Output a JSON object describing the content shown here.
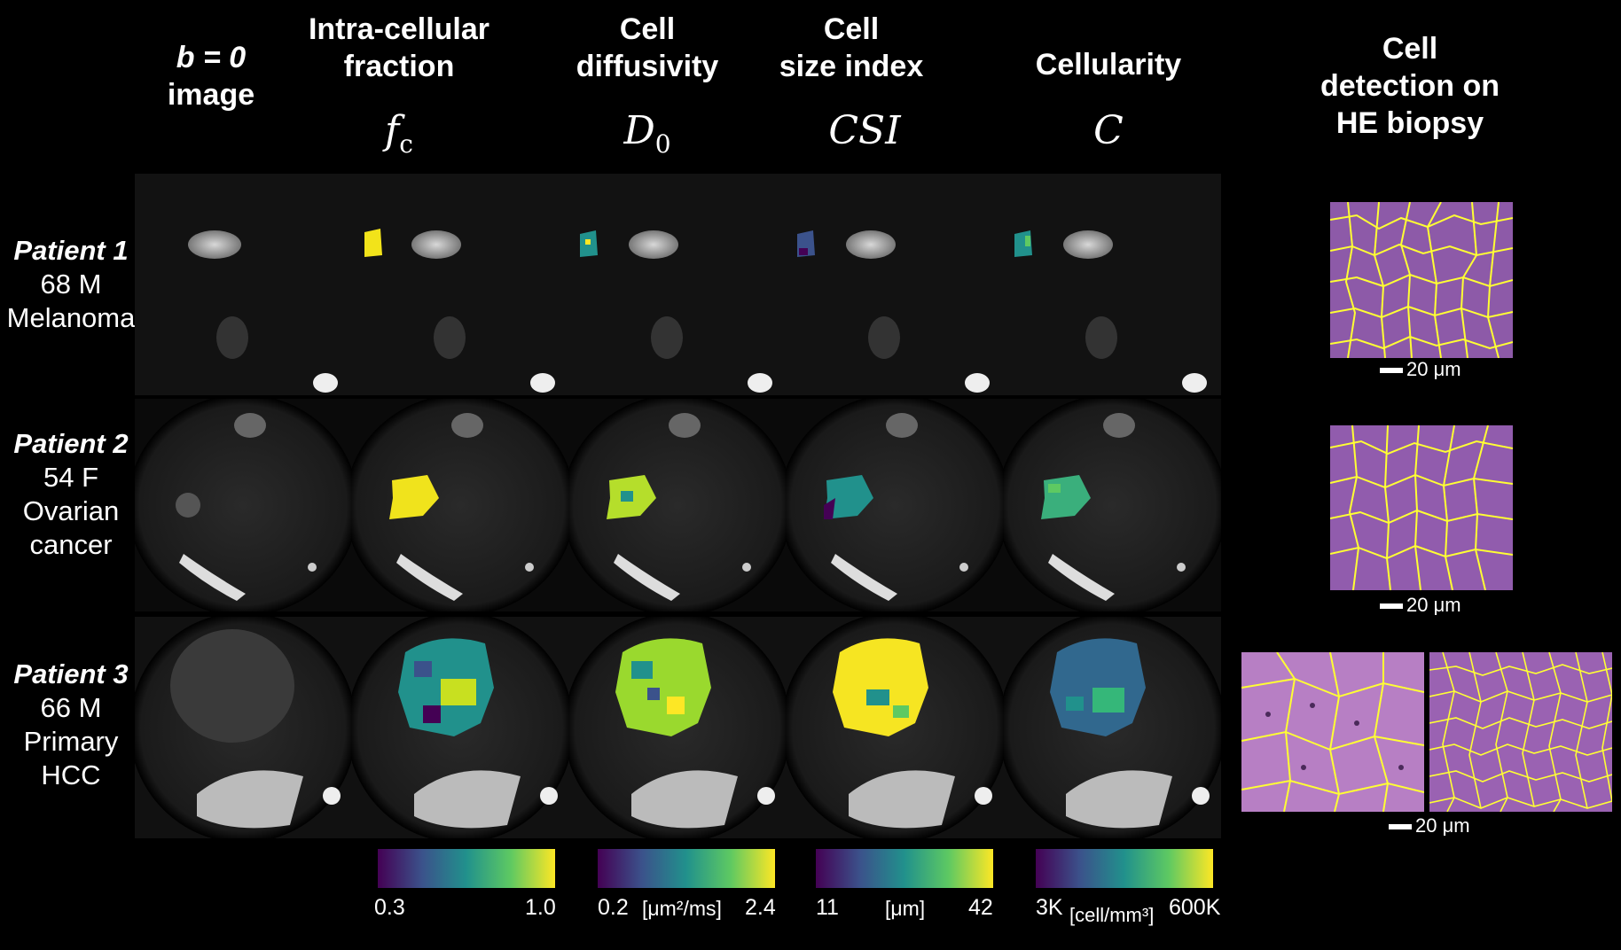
{
  "columns": {
    "b0": {
      "line1": "b = 0",
      "line2": "image"
    },
    "fc": {
      "line1": "Intra-cellular",
      "line2": "fraction",
      "symbol": "f",
      "sub": "c"
    },
    "d0": {
      "line1": "Cell",
      "line2": "diffusivity",
      "symbol": "D",
      "sub": "0"
    },
    "csi": {
      "line1": "Cell",
      "line2": "size index",
      "symbol": "CSI"
    },
    "cell": {
      "line1": "Cellularity",
      "symbol": "C"
    },
    "he": {
      "line1": "Cell",
      "line2": "detection on",
      "line3": "HE biopsy"
    }
  },
  "patients": [
    {
      "name": "Patient 1",
      "line1": "68 M",
      "line2": "Melanoma"
    },
    {
      "name": "Patient 2",
      "line1": "54 F",
      "line2": "Ovarian",
      "line3": "cancer"
    },
    {
      "name": "Patient 3",
      "line1": "66 M",
      "line2": "Primary",
      "line3": "HCC"
    }
  ],
  "colorbars": {
    "fc": {
      "min": "0.3",
      "max": "1.0",
      "unit": ""
    },
    "d0": {
      "min": "0.2",
      "max": "2.4",
      "unit": "[μm²/ms]"
    },
    "csi": {
      "min": "11",
      "max": "42",
      "unit": "[μm]"
    },
    "cell": {
      "min": "3K",
      "max": "600K",
      "unit": "[cell/mm³]"
    }
  },
  "scale_label": "20 μm",
  "colors": {
    "viridis_low": "#440154",
    "viridis_mid": "#21918c",
    "viridis_high": "#fde725",
    "he_bg": "#9a5fb0",
    "he_lines": "#ffff33"
  }
}
